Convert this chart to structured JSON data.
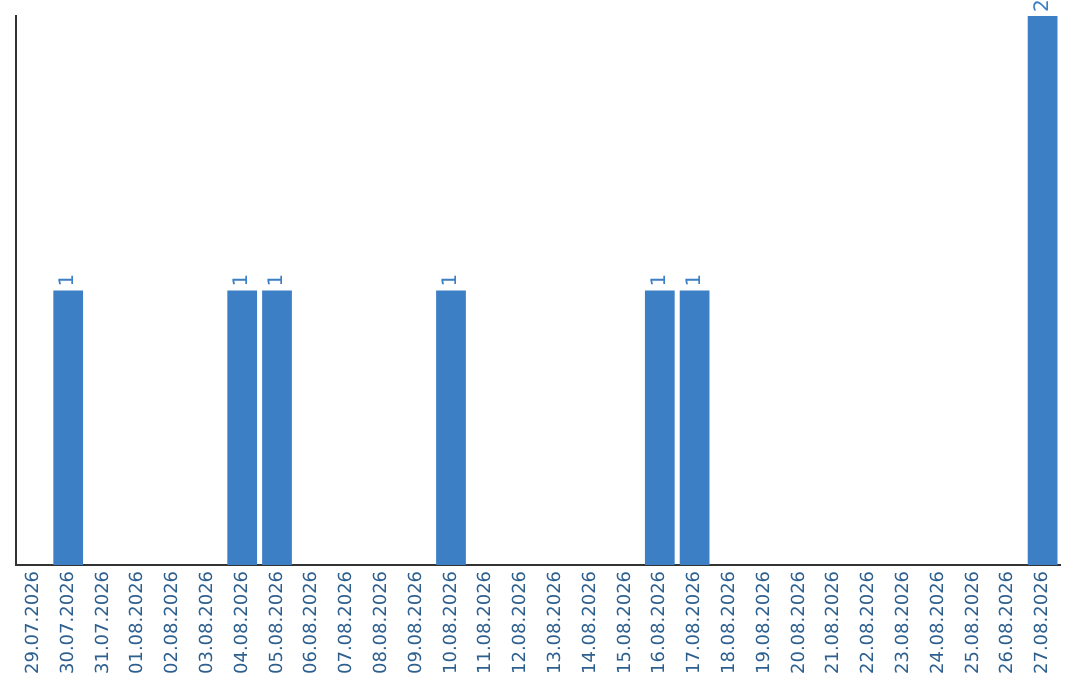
{
  "chart_data": {
    "type": "bar",
    "categories": [
      "29.07.2026",
      "30.07.2026",
      "31.07.2026",
      "01.08.2026",
      "02.08.2026",
      "03.08.2026",
      "04.08.2026",
      "05.08.2026",
      "06.08.2026",
      "07.08.2026",
      "08.08.2026",
      "09.08.2026",
      "10.08.2026",
      "11.08.2026",
      "12.08.2026",
      "13.08.2026",
      "14.08.2026",
      "15.08.2026",
      "16.08.2026",
      "17.08.2026",
      "18.08.2026",
      "19.08.2026",
      "20.08.2026",
      "21.08.2026",
      "22.08.2026",
      "23.08.2026",
      "24.08.2026",
      "25.08.2026",
      "26.08.2026",
      "27.08.2026"
    ],
    "values": [
      0,
      1,
      0,
      0,
      0,
      0,
      1,
      1,
      0,
      0,
      0,
      0,
      1,
      0,
      0,
      0,
      0,
      0,
      1,
      1,
      0,
      0,
      0,
      0,
      0,
      0,
      0,
      0,
      0,
      2
    ],
    "value_labels": [
      null,
      "1",
      null,
      null,
      null,
      null,
      "1",
      "1",
      null,
      null,
      null,
      null,
      "1",
      null,
      null,
      null,
      null,
      null,
      "1",
      "1",
      null,
      null,
      null,
      null,
      null,
      null,
      null,
      null,
      null,
      "2"
    ],
    "color": "#3d7fc4",
    "grid": false,
    "legend": false,
    "tick_labels": "x"
  }
}
